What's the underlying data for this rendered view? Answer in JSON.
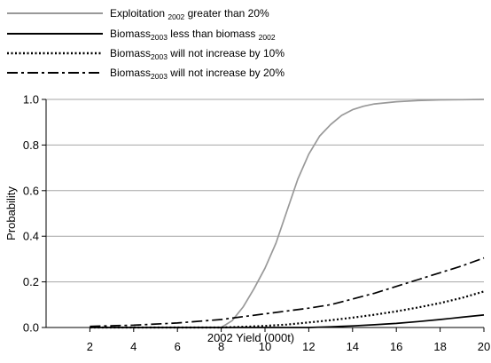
{
  "chart_data": {
    "type": "line",
    "xlabel": "2002 Yield (000t)",
    "ylabel": "Probability",
    "xlim": [
      0,
      20
    ],
    "ylim": [
      0,
      1
    ],
    "x_ticks": [
      2,
      4,
      6,
      8,
      10,
      12,
      14,
      16,
      18,
      20
    ],
    "x_tick_labels": [
      "2",
      "4",
      "6",
      "8",
      "10",
      "12",
      "14",
      "16",
      "18",
      "20"
    ],
    "y_ticks": [
      0,
      0.2,
      0.4,
      0.6,
      0.8,
      1.0
    ],
    "y_tick_labels": [
      "0.0",
      "0.2",
      "0.4",
      "0.6",
      "0.8",
      "1.0"
    ],
    "grid": "horizontal",
    "legend_position": "top-left",
    "series": [
      {
        "name": "Exploitation 2002 greater than 20%",
        "name_parts": {
          "pre": "Exploitation ",
          "sub": "2002",
          "post": " greater than 20%"
        },
        "color": "#999999",
        "style": "solid",
        "x": [
          2,
          4,
          6,
          8,
          8.5,
          9,
          9.5,
          10,
          10.5,
          11,
          11.5,
          12,
          12.5,
          13,
          13.5,
          14,
          14.5,
          15,
          15.5,
          16,
          17,
          18,
          19,
          20
        ],
        "y": [
          0,
          0,
          0,
          0,
          0.03,
          0.09,
          0.17,
          0.26,
          0.37,
          0.51,
          0.65,
          0.76,
          0.84,
          0.89,
          0.93,
          0.955,
          0.97,
          0.98,
          0.985,
          0.99,
          0.995,
          0.998,
          0.999,
          1.0
        ]
      },
      {
        "name": "Biomass2003 less than biomass 2002",
        "name_parts": {
          "pre": "Biomass",
          "sub": "2003",
          "post": " less than biomass ",
          "sub2": "2002"
        },
        "color": "#000000",
        "style": "solid",
        "x": [
          2,
          4,
          6,
          8,
          10,
          12,
          13,
          14,
          15,
          16,
          17,
          18,
          19,
          20
        ],
        "y": [
          0,
          0,
          0,
          0,
          0,
          0,
          0.003,
          0.007,
          0.012,
          0.018,
          0.026,
          0.035,
          0.045,
          0.055
        ]
      },
      {
        "name": "Biomass2003 will not increase by 10%",
        "name_parts": {
          "pre": "Biomass",
          "sub": "2003",
          "post": " will not increase by 10%"
        },
        "color": "#000000",
        "style": "dotted",
        "x": [
          2,
          4,
          6,
          8,
          9,
          10,
          11,
          12,
          13,
          14,
          15,
          16,
          17,
          18,
          19,
          20
        ],
        "y": [
          0,
          0,
          0,
          0,
          0.003,
          0.007,
          0.013,
          0.022,
          0.032,
          0.043,
          0.056,
          0.071,
          0.088,
          0.107,
          0.13,
          0.158
        ]
      },
      {
        "name": "Biomass2003 will not increase by 20%",
        "name_parts": {
          "pre": "Biomass",
          "sub": "2003",
          "post": " will not increase by 20%"
        },
        "color": "#000000",
        "style": "dashdot",
        "x": [
          2,
          4,
          6,
          8,
          10,
          12,
          13,
          14,
          15,
          16,
          17,
          18,
          19,
          20
        ],
        "y": [
          0.005,
          0.01,
          0.02,
          0.035,
          0.06,
          0.085,
          0.1,
          0.125,
          0.15,
          0.18,
          0.21,
          0.24,
          0.27,
          0.305
        ]
      }
    ]
  }
}
